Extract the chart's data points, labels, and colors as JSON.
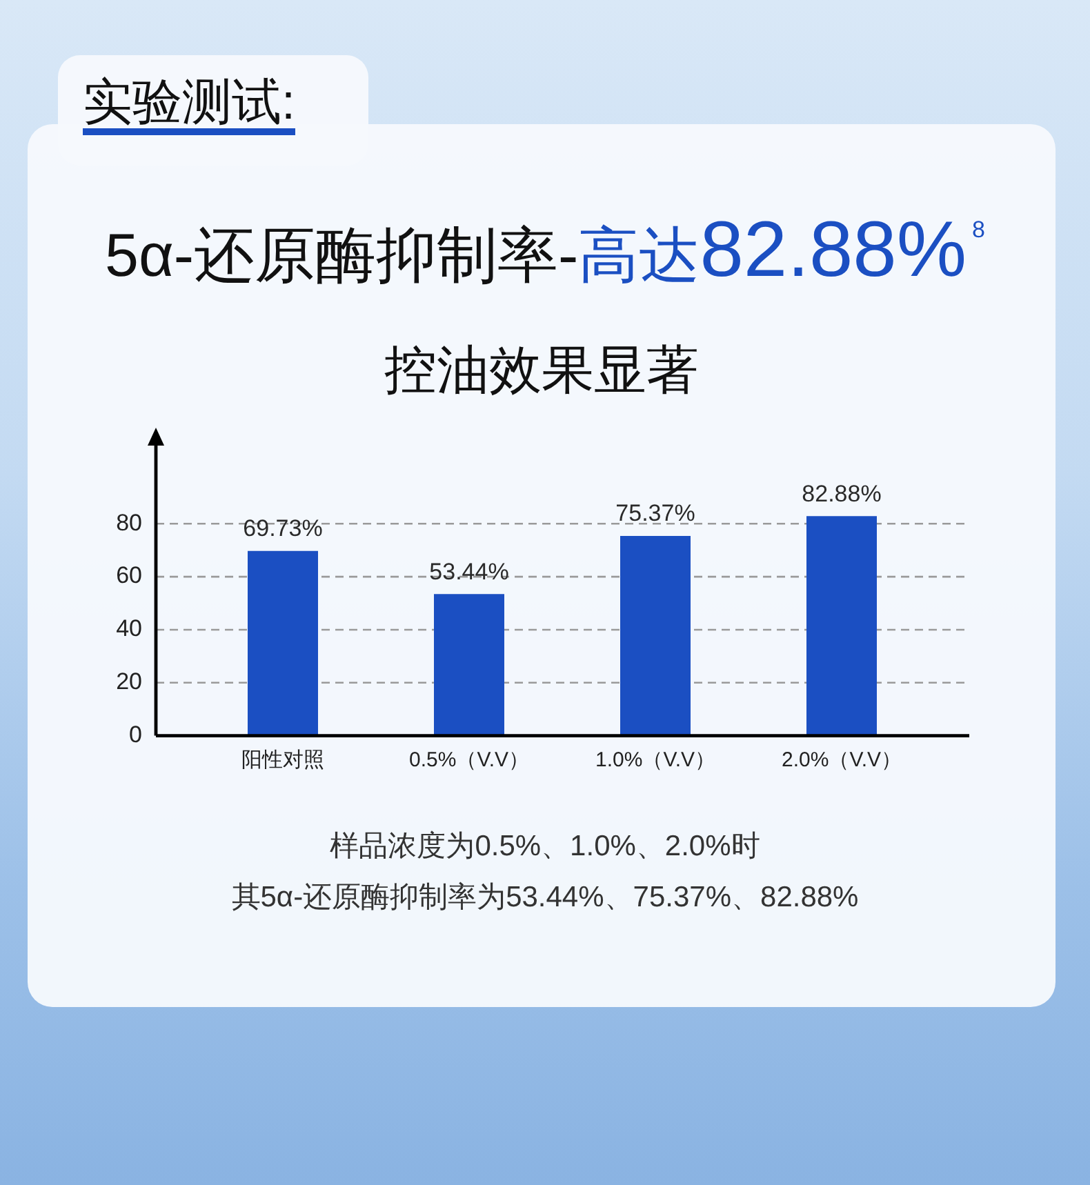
{
  "chart_data": {
    "type": "bar",
    "title": "5α-还原酶抑制率-高达82.88%$^{8}$",
    "subtitle": "控油效果显著",
    "annotations": [
      "实验测试:",
      "样品浓度为0.5%、1.0%、2.0%时",
      "其5α-还原酶抑制率为53.44%、75.37%、82.88%"
    ],
    "categories": [
      "阳性对照",
      "0.5%（V.V）",
      "1.0%（V.V）",
      "2.0%（V.V）"
    ],
    "values": [
      69.73,
      53.44,
      75.37,
      82.88
    ],
    "value_labels": [
      "69.73%",
      "53.44%",
      "75.37%",
      "82.88%"
    ],
    "color": "#1b4fc2",
    "ylim": [
      0,
      110
    ],
    "yticks": [
      0,
      20,
      40,
      60,
      80
    ],
    "grid": "y"
  }
}
